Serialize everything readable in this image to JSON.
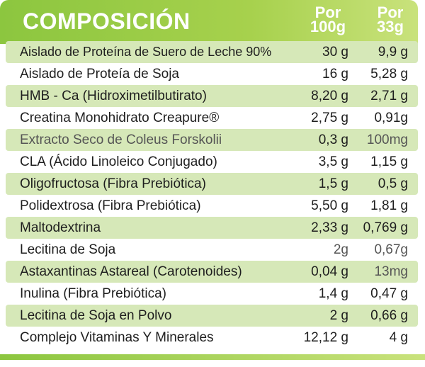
{
  "header": {
    "title": "COMPOSICIÓN",
    "col1": "Por 100g",
    "col2": "Por 33g",
    "col1_line1": "Por",
    "col1_line2": "100g",
    "col2_line1": "Por",
    "col2_line2": "33g"
  },
  "rows": [
    {
      "name": "Aislado de Proteína de Suero de Leche  90%",
      "v1": "30 g",
      "v2": "9,9 g"
    },
    {
      "name": "Aislado de Proteía de Soja",
      "v1": "16 g",
      "v2": "5,28 g"
    },
    {
      "name": "HMB - Ca (Hidroximetilbutirato)",
      "v1": "8,20 g",
      "v2": "2,71 g"
    },
    {
      "name": "Creatina Monohidrato Creapure®",
      "v1": "2,75 g",
      "v2": "0,91g"
    },
    {
      "name": "Extracto Seco de Coleus Forskolii",
      "v1": "0,3 g",
      "v2": "100mg"
    },
    {
      "name": "CLA  (Ácido Linoleico Conjugado)",
      "v1": "3,5 g",
      "v2": "1,15 g"
    },
    {
      "name": "Oligofructosa (Fibra Prebiótica)",
      "v1": "1,5 g",
      "v2": "0,5 g"
    },
    {
      "name": "Polidextrosa (Fibra Prebiótica)",
      "v1": "5,50 g",
      "v2": "1,81 g"
    },
    {
      "name": "Maltodextrina",
      "v1": "2,33 g",
      "v2": "0,769 g"
    },
    {
      "name": "Lecitina de Soja",
      "v1": "2g",
      "v2": "0,67g"
    },
    {
      "name": "Astaxantinas Astareal (Carotenoides)",
      "v1": "0,04 g",
      "v2": "13mg"
    },
    {
      "name": "Inulina (Fibra Prebiótica)",
      "v1": "1,4 g",
      "v2": "0,47 g"
    },
    {
      "name": "Lecitina de Soja en Polvo",
      "v1": "2 g",
      "v2": "0,66 g"
    },
    {
      "name": "Complejo Vitaminas Y Minerales",
      "v1": "12,12 g",
      "v2": "4 g"
    }
  ],
  "colors": {
    "header_green": "#8cc63f",
    "row_shade": "#d6e8b8"
  }
}
